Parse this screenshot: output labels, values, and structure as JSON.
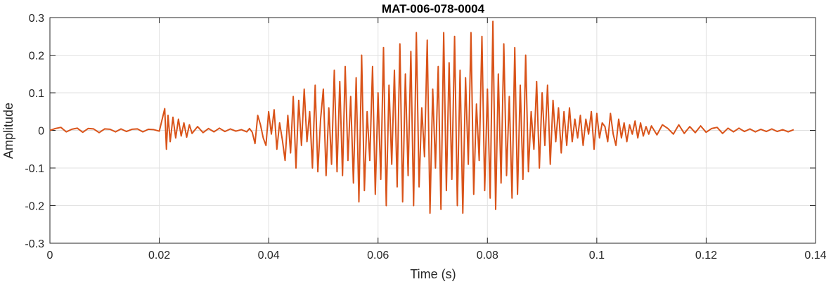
{
  "chart_data": {
    "type": "line",
    "title": "MAT-006-078-0004",
    "xlabel": "Time (s)",
    "ylabel": "Amplitude",
    "xlim": [
      0,
      0.14
    ],
    "ylim": [
      -0.3,
      0.3
    ],
    "xticks": [
      0,
      0.02,
      0.04,
      0.06,
      0.08,
      0.1,
      0.12,
      0.14
    ],
    "xtick_labels": [
      "0",
      "0.02",
      "0.04",
      "0.06",
      "0.08",
      "0.1",
      "0.12",
      "0.14"
    ],
    "yticks": [
      -0.3,
      -0.2,
      -0.1,
      0,
      0.1,
      0.2,
      0.3
    ],
    "ytick_labels": [
      "-0.3",
      "-0.2",
      "-0.1",
      "0",
      "0.1",
      "0.2",
      "0.3"
    ],
    "grid": true,
    "legend": "none",
    "line_color": "#D95319",
    "series": [
      {
        "x": [
          0,
          0.001,
          0.002,
          0.003,
          0.004,
          0.005,
          0.006,
          0.007,
          0.008,
          0.009,
          0.01,
          0.011,
          0.012,
          0.013,
          0.014,
          0.015,
          0.016,
          0.017,
          0.018,
          0.019,
          0.02,
          0.021,
          0.0213,
          0.0216,
          0.022,
          0.0225,
          0.023,
          0.0235,
          0.024,
          0.0245,
          0.025,
          0.0255,
          0.026,
          0.027,
          0.028,
          0.029,
          0.03,
          0.031,
          0.032,
          0.033,
          0.034,
          0.035,
          0.036,
          0.0365,
          0.037,
          0.0375,
          0.038,
          0.0385,
          0.039,
          0.0395,
          0.04,
          0.0405,
          0.041,
          0.0415,
          0.042,
          0.0425,
          0.043,
          0.0435,
          0.044,
          0.0445,
          0.045,
          0.0455,
          0.046,
          0.0465,
          0.047,
          0.0475,
          0.048,
          0.0485,
          0.049,
          0.0495,
          0.05,
          0.0505,
          0.051,
          0.0515,
          0.052,
          0.0525,
          0.053,
          0.0535,
          0.054,
          0.0545,
          0.055,
          0.0555,
          0.056,
          0.0565,
          0.057,
          0.0575,
          0.058,
          0.0585,
          0.059,
          0.0595,
          0.06,
          0.0605,
          0.061,
          0.0615,
          0.062,
          0.0625,
          0.063,
          0.0635,
          0.064,
          0.0645,
          0.065,
          0.0655,
          0.066,
          0.0665,
          0.067,
          0.0675,
          0.068,
          0.0685,
          0.069,
          0.0695,
          0.07,
          0.0705,
          0.071,
          0.0715,
          0.072,
          0.0725,
          0.073,
          0.0735,
          0.074,
          0.0745,
          0.075,
          0.0755,
          0.076,
          0.0765,
          0.077,
          0.0775,
          0.078,
          0.0785,
          0.079,
          0.0795,
          0.08,
          0.0805,
          0.081,
          0.0815,
          0.082,
          0.0825,
          0.083,
          0.0835,
          0.084,
          0.0845,
          0.085,
          0.0855,
          0.086,
          0.0865,
          0.087,
          0.0875,
          0.088,
          0.0885,
          0.089,
          0.0895,
          0.09,
          0.0905,
          0.091,
          0.0915,
          0.092,
          0.0925,
          0.093,
          0.0935,
          0.094,
          0.0945,
          0.095,
          0.0955,
          0.096,
          0.0965,
          0.097,
          0.0975,
          0.098,
          0.0985,
          0.099,
          0.0995,
          0.1,
          0.1005,
          0.101,
          0.1015,
          0.102,
          0.1025,
          0.103,
          0.1035,
          0.104,
          0.1045,
          0.105,
          0.1055,
          0.106,
          0.1065,
          0.107,
          0.1075,
          0.108,
          0.1085,
          0.109,
          0.1095,
          0.11,
          0.111,
          0.112,
          0.113,
          0.114,
          0.115,
          0.116,
          0.117,
          0.118,
          0.119,
          0.12,
          0.121,
          0.122,
          0.123,
          0.124,
          0.125,
          0.126,
          0.127,
          0.128,
          0.129,
          0.13,
          0.131,
          0.132,
          0.133,
          0.134,
          0.135,
          0.136
        ],
        "y": [
          0,
          0.005,
          0.008,
          -0.004,
          0.003,
          0.006,
          -0.005,
          0.005,
          0.004,
          -0.006,
          0.004,
          0.003,
          -0.004,
          0.004,
          -0.003,
          0.003,
          0.004,
          -0.004,
          0.003,
          0.002,
          -0.002,
          0.058,
          -0.05,
          0.04,
          -0.03,
          0.035,
          -0.02,
          0.03,
          -0.015,
          0.02,
          -0.018,
          0.015,
          -0.008,
          0.01,
          -0.006,
          0.005,
          -0.004,
          0.006,
          -0.003,
          0.004,
          -0.002,
          0.002,
          -0.004,
          0.005,
          -0.005,
          -0.035,
          0.04,
          0.015,
          -0.02,
          -0.04,
          0.05,
          -0.01,
          0.055,
          -0.05,
          0.02,
          -0.025,
          -0.08,
          0.04,
          -0.06,
          0.09,
          -0.1,
          0.08,
          -0.04,
          0.11,
          -0.03,
          0.05,
          -0.1,
          0.12,
          -0.11,
          0.03,
          0.11,
          -0.12,
          0.06,
          -0.09,
          0.16,
          -0.11,
          0.13,
          -0.12,
          0.17,
          -0.08,
          0.09,
          -0.14,
          0.14,
          -0.19,
          0.2,
          -0.16,
          0.05,
          -0.08,
          0.17,
          -0.17,
          0.1,
          -0.13,
          0.22,
          -0.2,
          0.12,
          -0.09,
          0.16,
          -0.15,
          0.23,
          -0.19,
          0.15,
          -0.12,
          0.21,
          -0.2,
          0.26,
          -0.15,
          0.06,
          -0.07,
          0.24,
          -0.22,
          0.11,
          -0.1,
          0.17,
          -0.21,
          0.26,
          -0.16,
          0.18,
          -0.13,
          0.25,
          -0.2,
          0.16,
          -0.22,
          0.14,
          -0.09,
          0.26,
          -0.17,
          0.07,
          -0.08,
          0.25,
          -0.16,
          0.11,
          -0.18,
          0.29,
          -0.21,
          0.15,
          -0.14,
          0.23,
          -0.12,
          0.09,
          -0.18,
          0.22,
          -0.17,
          0.12,
          -0.13,
          0.2,
          -0.11,
          0.05,
          -0.05,
          0.13,
          -0.1,
          0.1,
          -0.04,
          0.12,
          -0.09,
          0.08,
          -0.03,
          0.06,
          -0.06,
          0.05,
          -0.04,
          0.06,
          -0.03,
          0.03,
          -0.02,
          0.04,
          -0.04,
          0.03,
          -0.01,
          0.05,
          -0.05,
          0.045,
          -0.02,
          0.02,
          0.01,
          -0.03,
          0.045,
          -0.01,
          -0.04,
          0.03,
          -0.02,
          0.02,
          -0.03,
          0.015,
          -0.01,
          0.025,
          -0.02,
          0.02,
          -0.015,
          0.01,
          -0.01,
          0.012,
          -0.012,
          0.015,
          0.005,
          -0.01,
          0.015,
          -0.008,
          0.01,
          -0.006,
          0.012,
          -0.005,
          0.005,
          0.008,
          -0.008,
          0.006,
          -0.004,
          0.006,
          -0.003,
          0.004,
          -0.004,
          0.003,
          -0.003,
          0.004,
          -0.003,
          0.002,
          -0.004,
          0.002
        ]
      }
    ]
  }
}
